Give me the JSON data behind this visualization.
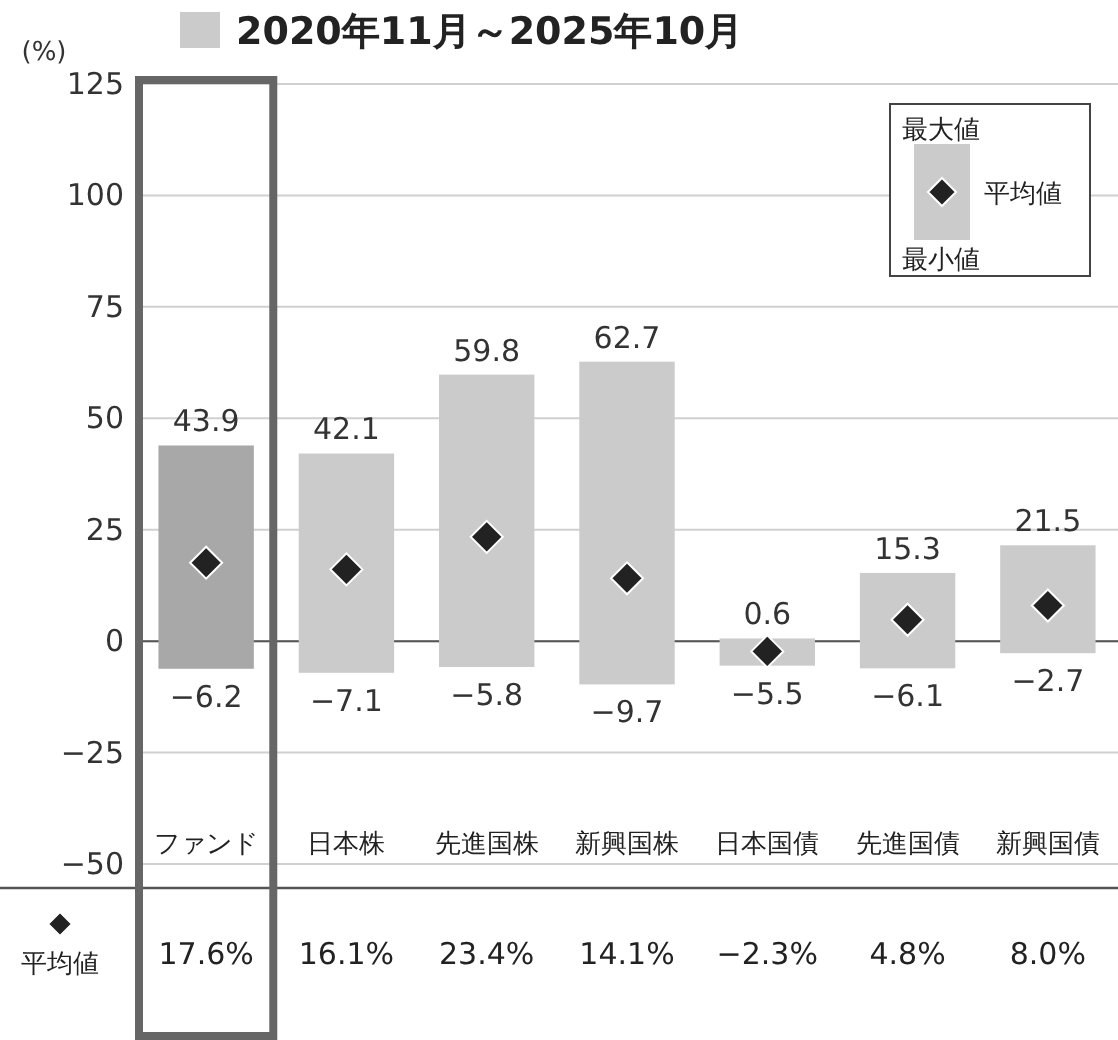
{
  "chart_data": {
    "type": "bar",
    "ylabel": "(%)",
    "categories": [
      "ファンド",
      "日本株",
      "先進国株",
      "新興国株",
      "日本国債",
      "先進国債",
      "新興国債"
    ],
    "series": [
      {
        "name": "2020年11月～2025年10月",
        "type": "bar",
        "base": [
          -6.2,
          -7.1,
          -5.8,
          -9.7,
          -5.5,
          -6.1,
          -2.7
        ],
        "values": [
          50.1,
          49.2,
          65.6,
          72.4,
          6.1,
          21.4,
          24.2
        ],
        "colors": [
          "#a8a8a8",
          "#cbcbcb",
          "#cbcbcb",
          "#cbcbcb",
          "#cbcbcb",
          "#cbcbcb",
          "#cbcbcb"
        ]
      },
      {
        "type": "scatter",
        "color": "#222222",
        "marker": "diamond",
        "x": [
          "ファンド",
          "日本株",
          "先進国株",
          "新興国株",
          "日本国債",
          "先進国債",
          "新興国債"
        ],
        "values": [
          17.6,
          16.1,
          23.4,
          14.1,
          -2.3,
          4.8,
          8.0
        ],
        "value_labels": [
          "17.6%",
          "16.1%",
          "23.4%",
          "14.1%",
          "−2.3%",
          "4.8%",
          "8.0%"
        ]
      }
    ],
    "ylim": [
      -50,
      125
    ],
    "yticks": [
      {
        "value": -50,
        "label": "−50"
      },
      {
        "value": -25,
        "label": "−25"
      },
      0,
      25,
      50,
      75,
      100,
      125
    ],
    "grid": "y",
    "legend": "top left",
    "annotations": [
      {
        "text": "43.9",
        "x": "ファンド",
        "y": 43.9
      },
      {
        "text": "−6.2",
        "x": "ファンド",
        "y": -6.2
      },
      {
        "text": "42.1",
        "x": "日本株",
        "y": 42.1
      },
      {
        "text": "−7.1",
        "x": "日本株",
        "y": -7.1
      },
      {
        "text": "59.8",
        "x": "先進国株",
        "y": 59.8
      },
      {
        "text": "−5.8",
        "x": "先進国株",
        "y": -5.8
      },
      {
        "text": "62.7",
        "x": "新興国株",
        "y": 62.7
      },
      {
        "text": "−9.7",
        "x": "新興国株",
        "y": -9.7
      },
      {
        "text": "0.6",
        "x": "日本国債",
        "y": 0.6
      },
      {
        "text": "−5.5",
        "x": "日本国債",
        "y": -5.5
      },
      {
        "text": "15.3",
        "x": "先進国債",
        "y": 15.3
      },
      {
        "text": "−6.1",
        "x": "先進国債",
        "y": -6.1
      },
      {
        "text": "21.5",
        "x": "新興国債",
        "y": 21.5
      },
      {
        "text": "−2.7",
        "x": "新興国債",
        "y": -2.7
      },
      "最大値",
      "平均値",
      "最小値",
      "平均値"
    ]
  }
}
